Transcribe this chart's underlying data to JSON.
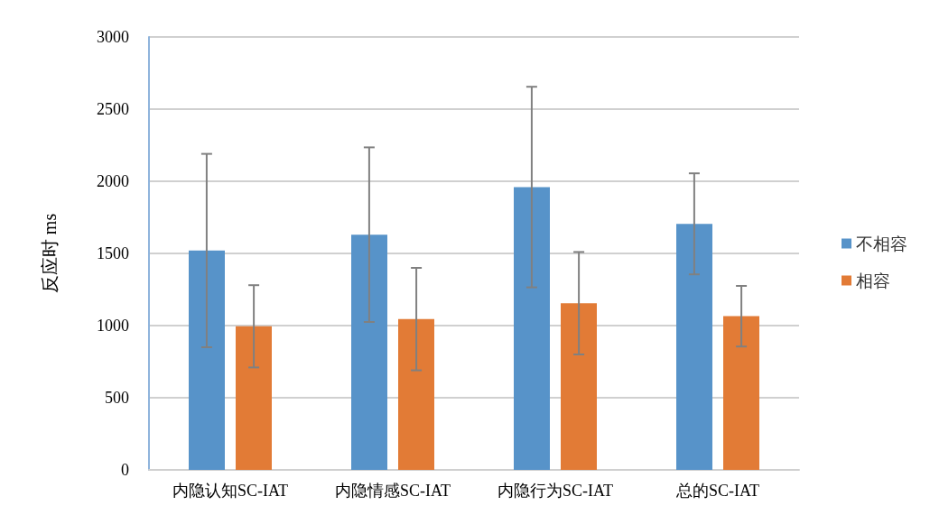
{
  "chart_data": {
    "type": "bar",
    "ylabel": "反应时 ms",
    "categories": [
      "内隐认知SC-IAT",
      "内隐情感SC-IAT",
      "内隐行为SC-IAT",
      "总的SC-IAT"
    ],
    "series": [
      {
        "name": "不相容",
        "color": "#5793c9",
        "values": [
          1520,
          1630,
          1960,
          1705
        ],
        "errors": [
          670,
          605,
          695,
          350
        ]
      },
      {
        "name": "相容",
        "color": "#e27b36",
        "values": [
          995,
          1045,
          1155,
          1065
        ],
        "errors": [
          285,
          355,
          355,
          210
        ]
      }
    ],
    "ylim": [
      0,
      3000
    ],
    "yticks": [
      0,
      500,
      1000,
      1500,
      2000,
      2500,
      3000
    ],
    "grid": "y",
    "legend": "right"
  }
}
